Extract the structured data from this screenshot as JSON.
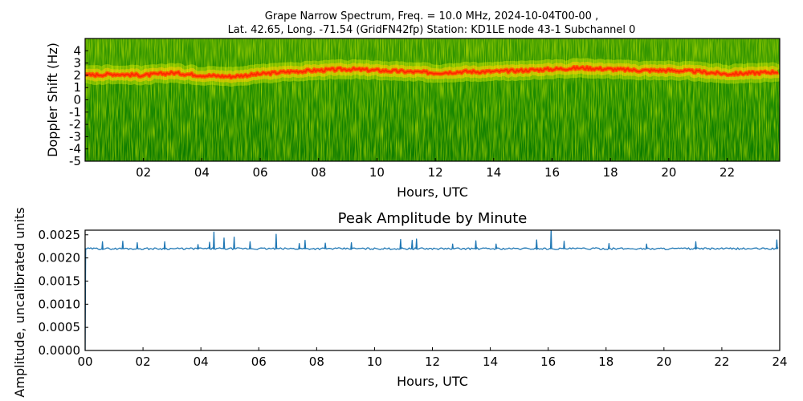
{
  "figure": {
    "title_line1": "Grape Narrow Spectrum, Freq. = 10.0 MHz, 2024-10-04T00-00 ,",
    "title_line2": "Lat.  42.65, Long. -71.54 (GridFN42fp) Station: KD1LE node 43-1 Subchannel 0"
  },
  "chart_data": [
    {
      "type": "heatmap",
      "title": "",
      "xlabel": "Hours, UTC",
      "ylabel": "Doppler Shift (Hz)",
      "xlim": [
        0,
        23.8
      ],
      "ylim": [
        -5,
        5
      ],
      "xticks": [
        "02",
        "04",
        "06",
        "08",
        "10",
        "12",
        "14",
        "16",
        "18",
        "20",
        "22"
      ],
      "xtick_values": [
        2,
        4,
        6,
        8,
        10,
        12,
        14,
        16,
        18,
        20,
        22
      ],
      "yticks": [
        "4",
        "3",
        "2",
        "1",
        "0",
        "-1",
        "-2",
        "-3",
        "-4",
        "-5"
      ],
      "ytick_values": [
        4,
        3,
        2,
        1,
        0,
        -1,
        -2,
        -3,
        -4,
        -5
      ],
      "colormap": [
        "#0a7a00",
        "#3f9d00",
        "#b7d900",
        "#ffff00",
        "#ff7a00",
        "#ff3300"
      ],
      "background_color": "#118a00",
      "signal_trace_hz": {
        "hours": [
          0,
          1,
          2,
          3,
          4,
          5,
          6,
          7,
          8,
          9,
          10,
          11,
          12,
          13,
          14,
          15,
          16,
          17,
          18,
          19,
          20,
          21,
          22,
          23,
          23.8
        ],
        "values": [
          2.0,
          2.1,
          2.0,
          2.2,
          2.0,
          1.9,
          2.1,
          2.3,
          2.4,
          2.5,
          2.4,
          2.3,
          2.2,
          2.3,
          2.3,
          2.4,
          2.5,
          2.6,
          2.5,
          2.4,
          2.4,
          2.3,
          2.1,
          2.2,
          2.3
        ]
      }
    },
    {
      "type": "line",
      "title": "Peak Amplitude by Minute",
      "xlabel": "Hours, UTC",
      "ylabel": "Amplitude, uncalibrated units",
      "xlim": [
        0,
        24
      ],
      "ylim": [
        0,
        0.0026
      ],
      "xticks": [
        "00",
        "02",
        "04",
        "06",
        "08",
        "10",
        "12",
        "14",
        "16",
        "18",
        "20",
        "22",
        "24"
      ],
      "xtick_values": [
        0,
        2,
        4,
        6,
        8,
        10,
        12,
        14,
        16,
        18,
        20,
        22,
        24
      ],
      "yticks": [
        "0.0025",
        "0.0020",
        "0.0015",
        "0.0010",
        "0.0005",
        "0.0000"
      ],
      "ytick_values": [
        0.0025,
        0.002,
        0.0015,
        0.001,
        0.0005,
        0.0
      ],
      "line_color": "#1f77b4",
      "baseline": 0.0022,
      "start_drop": 0.0,
      "peaks": [
        {
          "x": 0.6,
          "y": 0.00235
        },
        {
          "x": 1.3,
          "y": 0.00236
        },
        {
          "x": 1.8,
          "y": 0.00233
        },
        {
          "x": 2.75,
          "y": 0.00235
        },
        {
          "x": 3.9,
          "y": 0.00229
        },
        {
          "x": 4.3,
          "y": 0.00234
        },
        {
          "x": 4.45,
          "y": 0.00256
        },
        {
          "x": 4.8,
          "y": 0.00243
        },
        {
          "x": 5.15,
          "y": 0.00245
        },
        {
          "x": 5.7,
          "y": 0.00235
        },
        {
          "x": 6.6,
          "y": 0.00251
        },
        {
          "x": 7.4,
          "y": 0.00231
        },
        {
          "x": 7.6,
          "y": 0.00238
        },
        {
          "x": 8.3,
          "y": 0.00232
        },
        {
          "x": 9.2,
          "y": 0.00233
        },
        {
          "x": 10.9,
          "y": 0.0024
        },
        {
          "x": 11.3,
          "y": 0.00238
        },
        {
          "x": 11.45,
          "y": 0.00241
        },
        {
          "x": 12.7,
          "y": 0.0023
        },
        {
          "x": 13.5,
          "y": 0.00237
        },
        {
          "x": 14.2,
          "y": 0.0023
        },
        {
          "x": 15.6,
          "y": 0.00239
        },
        {
          "x": 16.1,
          "y": 0.00262
        },
        {
          "x": 16.55,
          "y": 0.00236
        },
        {
          "x": 18.1,
          "y": 0.00231
        },
        {
          "x": 19.4,
          "y": 0.0023
        },
        {
          "x": 21.1,
          "y": 0.00235
        },
        {
          "x": 23.9,
          "y": 0.00239
        }
      ]
    }
  ]
}
